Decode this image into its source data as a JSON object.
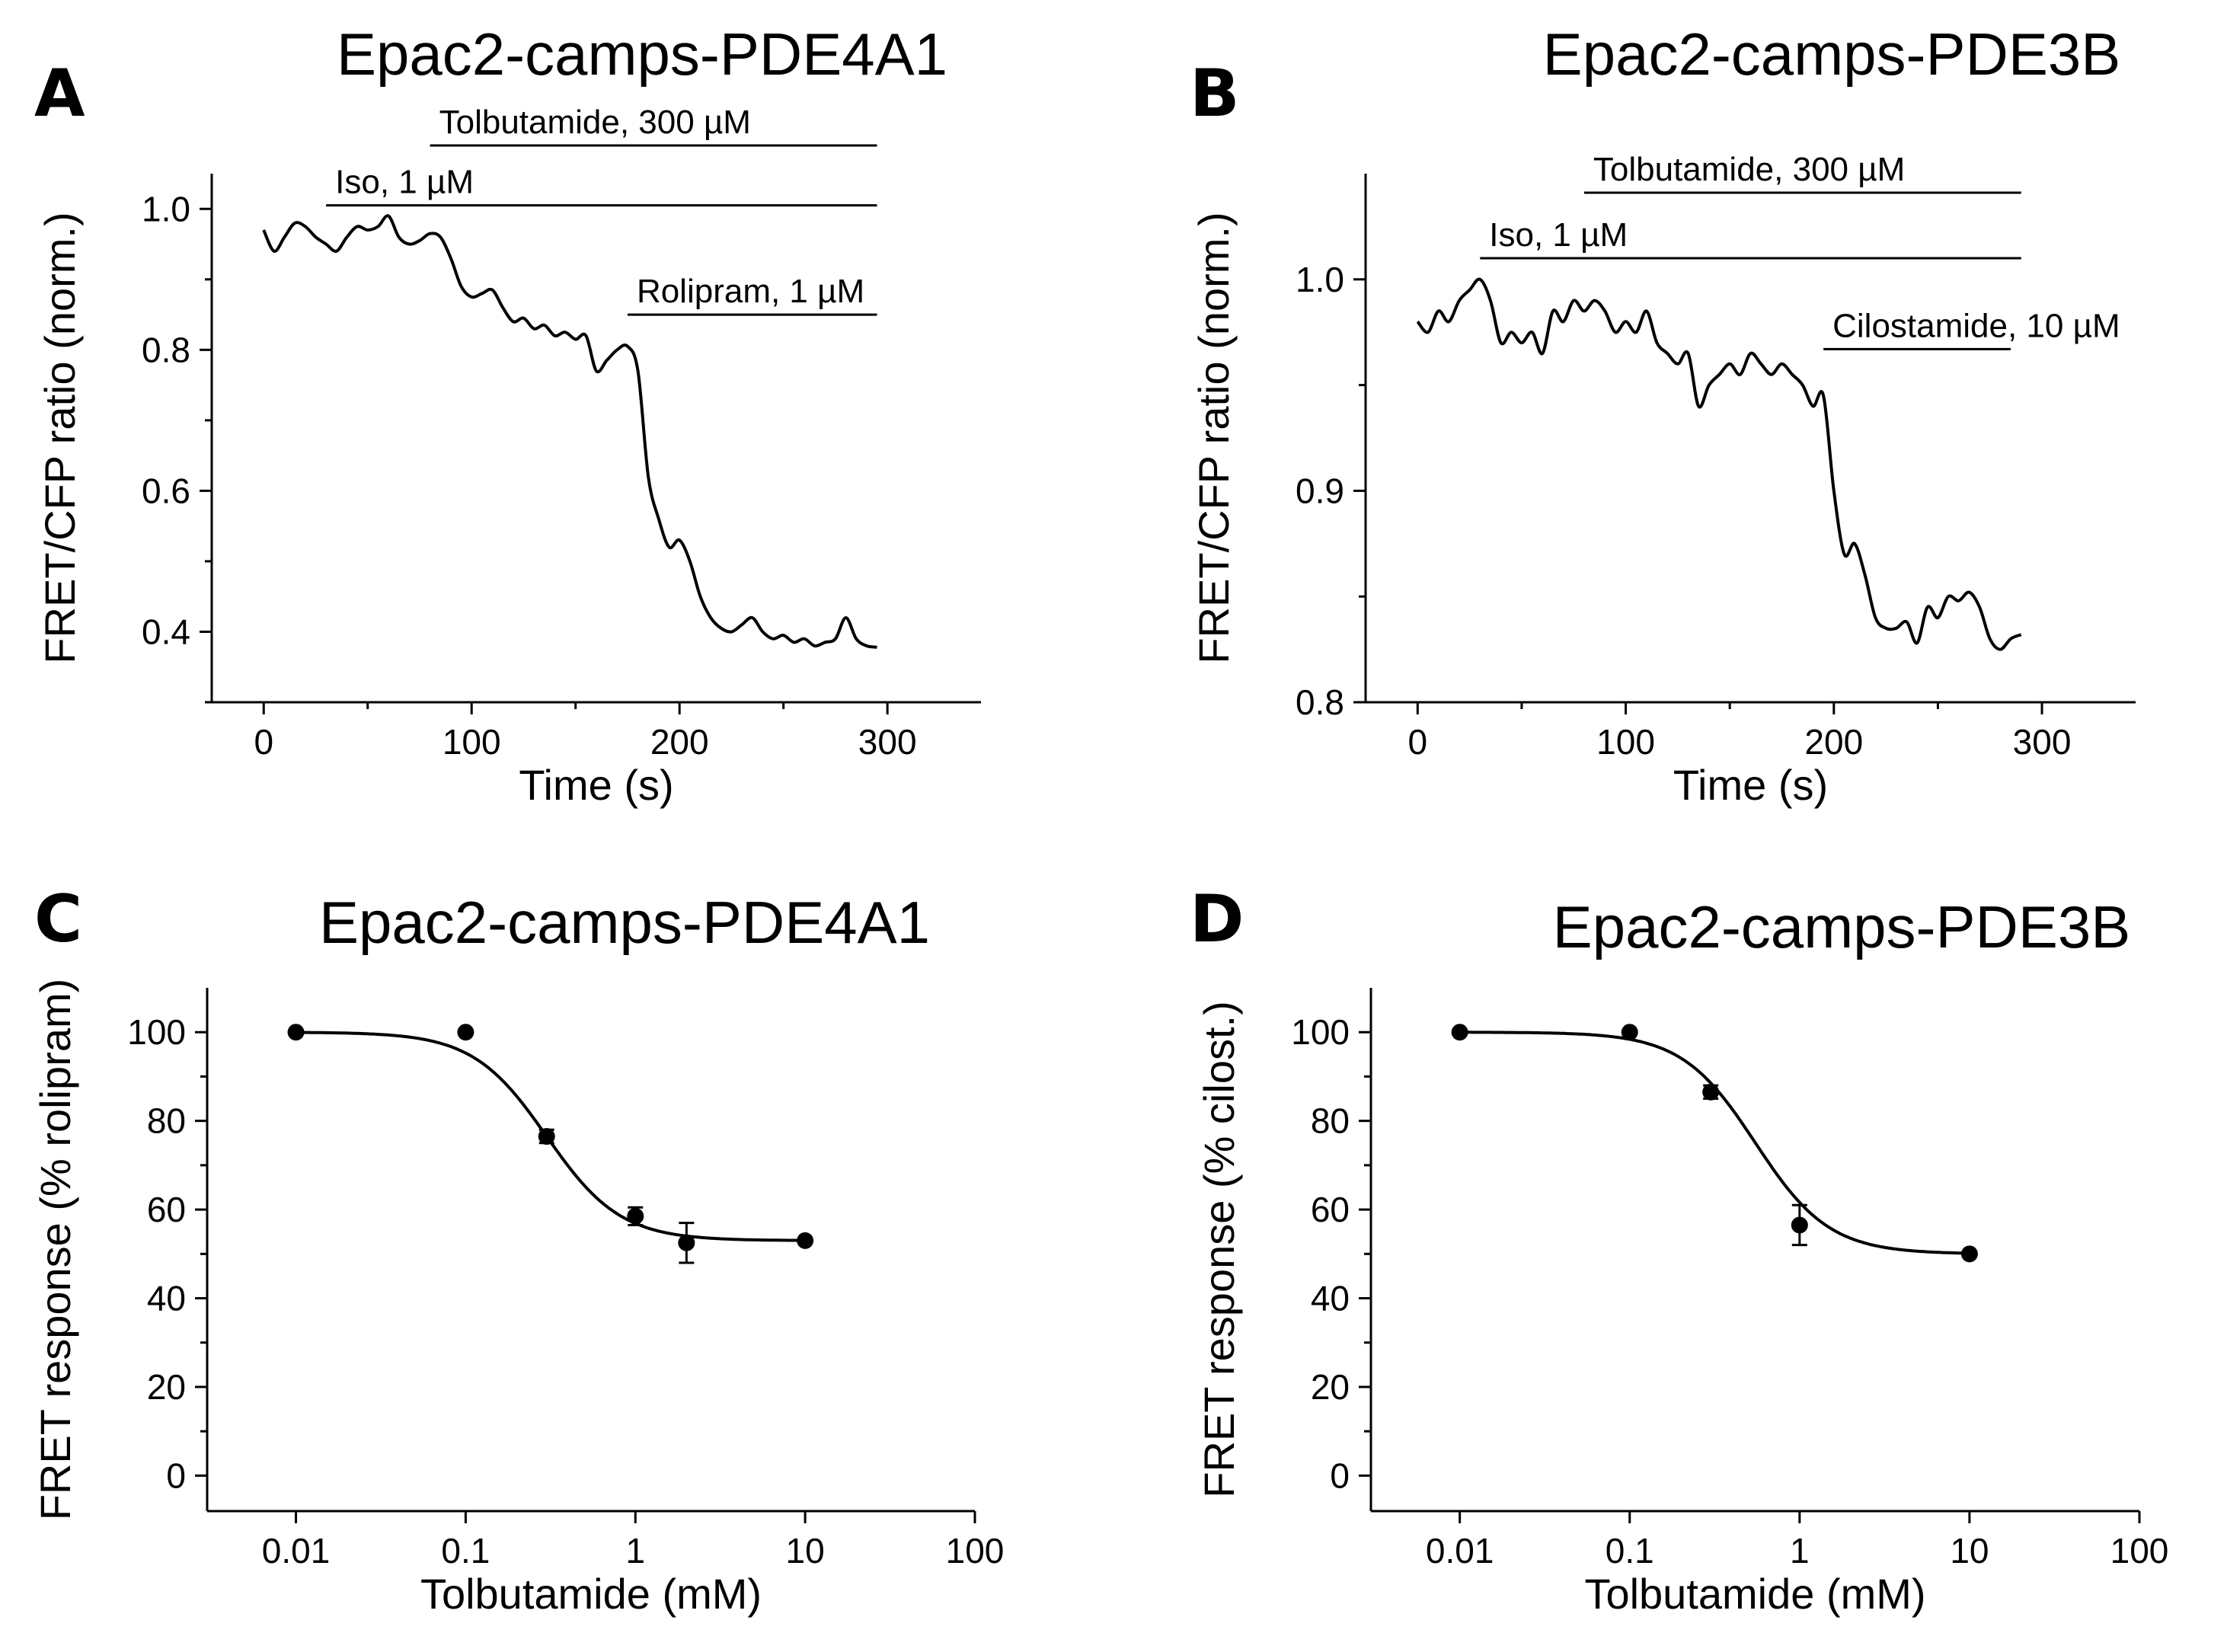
{
  "figure": {
    "panels": [
      {
        "letter": "A",
        "title": "Epac2-camps-PDE4A1"
      },
      {
        "letter": "B",
        "title": "Epac2-camps-PDE3B"
      },
      {
        "letter": "C",
        "title": "Epac2-camps-PDE4A1"
      },
      {
        "letter": "D",
        "title": "Epac2-camps-PDE3B"
      }
    ]
  },
  "chart_data": [
    {
      "panel": "A",
      "type": "line",
      "title": "Epac2-camps-PDE4A1",
      "xlabel": "Time (s)",
      "ylabel": "FRET/CFP ratio (norm.)",
      "xlim": [
        -25,
        345
      ],
      "ylim": [
        0.3,
        1.05
      ],
      "x_ticks": [
        0,
        100,
        200,
        300
      ],
      "y_ticks": [
        0.4,
        0.6,
        0.8,
        1.0
      ],
      "x_tick_labels": [
        "0",
        "100",
        "200",
        "300"
      ],
      "y_tick_labels": [
        "0.4",
        "0.6",
        "0.8",
        "1.0"
      ],
      "grid": false,
      "series": [
        {
          "x": [
            0,
            5,
            10,
            15,
            20,
            25,
            30,
            35,
            40,
            45,
            50,
            55,
            60,
            65,
            70,
            75,
            80,
            85,
            90,
            95,
            100,
            105,
            110,
            115,
            120,
            125,
            130,
            135,
            140,
            145,
            150,
            155,
            160,
            165,
            170,
            175,
            180,
            185,
            190,
            195,
            200,
            205,
            210,
            215,
            220,
            225,
            230,
            235,
            240,
            245,
            250,
            255,
            260,
            265,
            270,
            275,
            280,
            285,
            290,
            295
          ],
          "y": [
            0.97,
            0.94,
            0.96,
            0.98,
            0.975,
            0.96,
            0.95,
            0.94,
            0.96,
            0.975,
            0.97,
            0.975,
            0.99,
            0.96,
            0.95,
            0.955,
            0.965,
            0.96,
            0.93,
            0.89,
            0.875,
            0.88,
            0.885,
            0.86,
            0.84,
            0.845,
            0.83,
            0.835,
            0.82,
            0.825,
            0.815,
            0.82,
            0.77,
            0.785,
            0.8,
            0.805,
            0.77,
            0.62,
            0.56,
            0.52,
            0.53,
            0.5,
            0.45,
            0.42,
            0.405,
            0.4,
            0.41,
            0.42,
            0.4,
            0.39,
            0.395,
            0.385,
            0.39,
            0.38,
            0.385,
            0.39,
            0.42,
            0.39,
            0.38,
            0.378
          ]
        }
      ],
      "annotations": [
        {
          "label": "Tolbutamide, 300 µM",
          "x_start": 80,
          "x_end": 295,
          "y": 1.09
        },
        {
          "label": "Iso, 1 µM",
          "x_start": 30,
          "x_end": 295,
          "y": 1.005
        },
        {
          "label": "Rolipram, 1 µM",
          "x_start": 175,
          "x_end": 295,
          "y": 0.85
        }
      ]
    },
    {
      "panel": "B",
      "type": "line",
      "title": "Epac2-camps-PDE3B",
      "xlabel": "Time (s)",
      "ylabel": "FRET/CFP ratio (norm.)",
      "xlim": [
        -25,
        345
      ],
      "ylim": [
        0.8,
        1.05
      ],
      "x_ticks": [
        0,
        100,
        200,
        300
      ],
      "y_ticks": [
        0.8,
        0.9,
        1.0
      ],
      "x_tick_labels": [
        "0",
        "100",
        "200",
        "300"
      ],
      "y_tick_labels": [
        "0.8",
        "0.9",
        "1.0"
      ],
      "grid": false,
      "series": [
        {
          "x": [
            0,
            5,
            10,
            15,
            20,
            25,
            30,
            35,
            40,
            45,
            50,
            55,
            60,
            65,
            70,
            75,
            80,
            85,
            90,
            95,
            100,
            105,
            110,
            115,
            120,
            125,
            130,
            135,
            140,
            145,
            150,
            155,
            160,
            165,
            170,
            175,
            180,
            185,
            190,
            195,
            200,
            205,
            210,
            215,
            220,
            225,
            230,
            235,
            240,
            245,
            250,
            255,
            260,
            265,
            270,
            275,
            280,
            285,
            290
          ],
          "y": [
            0.98,
            0.975,
            0.985,
            0.98,
            0.99,
            0.995,
            1.0,
            0.99,
            0.97,
            0.975,
            0.97,
            0.975,
            0.965,
            0.985,
            0.98,
            0.99,
            0.985,
            0.99,
            0.985,
            0.975,
            0.98,
            0.975,
            0.985,
            0.97,
            0.965,
            0.96,
            0.965,
            0.94,
            0.95,
            0.955,
            0.96,
            0.955,
            0.965,
            0.96,
            0.955,
            0.96,
            0.955,
            0.95,
            0.94,
            0.945,
            0.9,
            0.87,
            0.875,
            0.86,
            0.84,
            0.835,
            0.835,
            0.838,
            0.828,
            0.845,
            0.84,
            0.85,
            0.848,
            0.852,
            0.845,
            0.83,
            0.825,
            0.83,
            0.832
          ]
        }
      ],
      "annotations": [
        {
          "label": "Tolbutamide, 300 µM",
          "x_start": 80,
          "x_end": 290,
          "y": 1.041
        },
        {
          "label": "Iso, 1 µM",
          "x_start": 30,
          "x_end": 290,
          "y": 1.01
        },
        {
          "label": "Cilostamide, 10 µM",
          "x_start": 195,
          "x_end": 285,
          "y": 0.967
        }
      ]
    },
    {
      "panel": "C",
      "type": "scatter",
      "title": "Epac2-camps-PDE4A1",
      "xlabel": "Tolbutamide (mM)",
      "ylabel": "FRET response (% rolipram)",
      "x_scale": "log",
      "xlim": [
        0.003,
        100
      ],
      "ylim": [
        -8,
        110
      ],
      "x_ticks": [
        0.01,
        0.1,
        1,
        10,
        100
      ],
      "y_ticks": [
        0,
        20,
        40,
        60,
        80,
        100
      ],
      "x_tick_labels": [
        "0.01",
        "0.1",
        "1",
        "10",
        "100"
      ],
      "y_tick_labels": [
        "0",
        "20",
        "40",
        "60",
        "80",
        "100"
      ],
      "grid": false,
      "points": {
        "x": [
          0.01,
          0.1,
          0.3,
          1,
          2,
          10
        ],
        "y": [
          100,
          100,
          76.5,
          58.5,
          52.5,
          53
        ],
        "error": [
          0,
          0,
          1.5,
          2,
          4.5,
          0
        ]
      },
      "fit": {
        "bottom": 53,
        "top": 100,
        "ec50": 0.3,
        "hill": 2.0
      }
    },
    {
      "panel": "D",
      "type": "scatter",
      "title": "Epac2-camps-PDE3B",
      "xlabel": "Tolbutamide (mM)",
      "ylabel": "FRET response (% cilost.)",
      "x_scale": "log",
      "xlim": [
        0.003,
        100
      ],
      "ylim": [
        -8,
        110
      ],
      "x_ticks": [
        0.01,
        0.1,
        1,
        10,
        100
      ],
      "y_ticks": [
        0,
        20,
        40,
        60,
        80,
        100
      ],
      "x_tick_labels": [
        "0.01",
        "0.1",
        "1",
        "10",
        "100"
      ],
      "y_tick_labels": [
        "0",
        "20",
        "40",
        "60",
        "80",
        "100"
      ],
      "grid": false,
      "points": {
        "x": [
          0.01,
          0.1,
          0.3,
          1,
          10
        ],
        "y": [
          100,
          100,
          86.5,
          56.5,
          50
        ],
        "error": [
          0,
          0,
          1.5,
          4.5,
          0
        ]
      },
      "fit": {
        "bottom": 50,
        "top": 100,
        "ec50": 0.55,
        "hill": 2.0
      }
    }
  ]
}
